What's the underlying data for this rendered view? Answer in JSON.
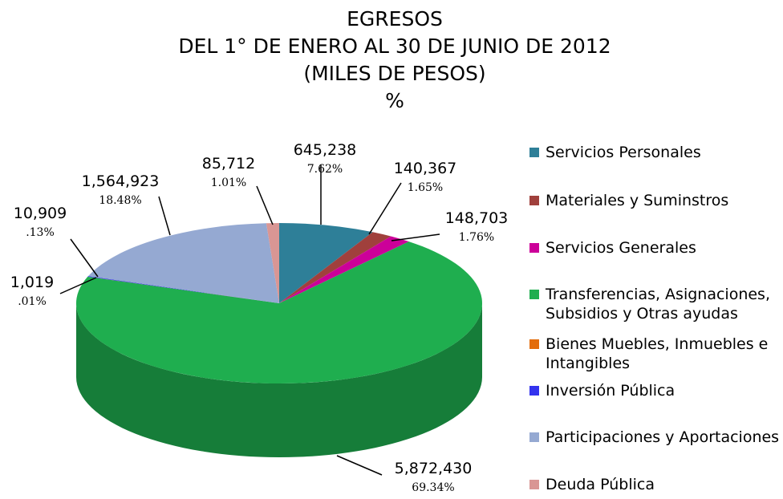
{
  "chart_data": {
    "type": "pie3d",
    "title_lines": [
      "EGRESOS",
      "DEL 1° DE ENERO AL 30 DE JUNIO DE 2012",
      "(MILES DE PESOS)",
      "%"
    ],
    "categories": [
      "Servicios Personales",
      "Materiales y  Suminstros",
      "Servicios Generales",
      "Transferencias, Asignaciones, Subsidios y Otras ayudas",
      "Bienes Muebles, Inmuebles e Intangibles",
      "Inversión Pública",
      "Participaciones y Aportaciones",
      "Deuda Pública"
    ],
    "colors": [
      "#2e7f98",
      "#a0403c",
      "#cc0099",
      "#1fae4f",
      "#e36c0a",
      "#3333ee",
      "#95a9d2",
      "#d99694"
    ],
    "values": [
      645238,
      140367,
      148703,
      5872430,
      1019,
      10909,
      1564923,
      85712
    ],
    "value_labels": [
      "645,238",
      "140,367",
      "148,703",
      "5,872,430",
      "1,019",
      "10,909",
      "1,564,923",
      "85,712"
    ],
    "shares": [
      7.62,
      1.65,
      1.76,
      69.34,
      0.01,
      0.13,
      18.48,
      1.01
    ],
    "share_labels": [
      "7.62%",
      "1.65%",
      "1.76%",
      "69.34%",
      ".01%",
      ".13%",
      "18.48%",
      "1.01%"
    ],
    "legend": "right"
  }
}
